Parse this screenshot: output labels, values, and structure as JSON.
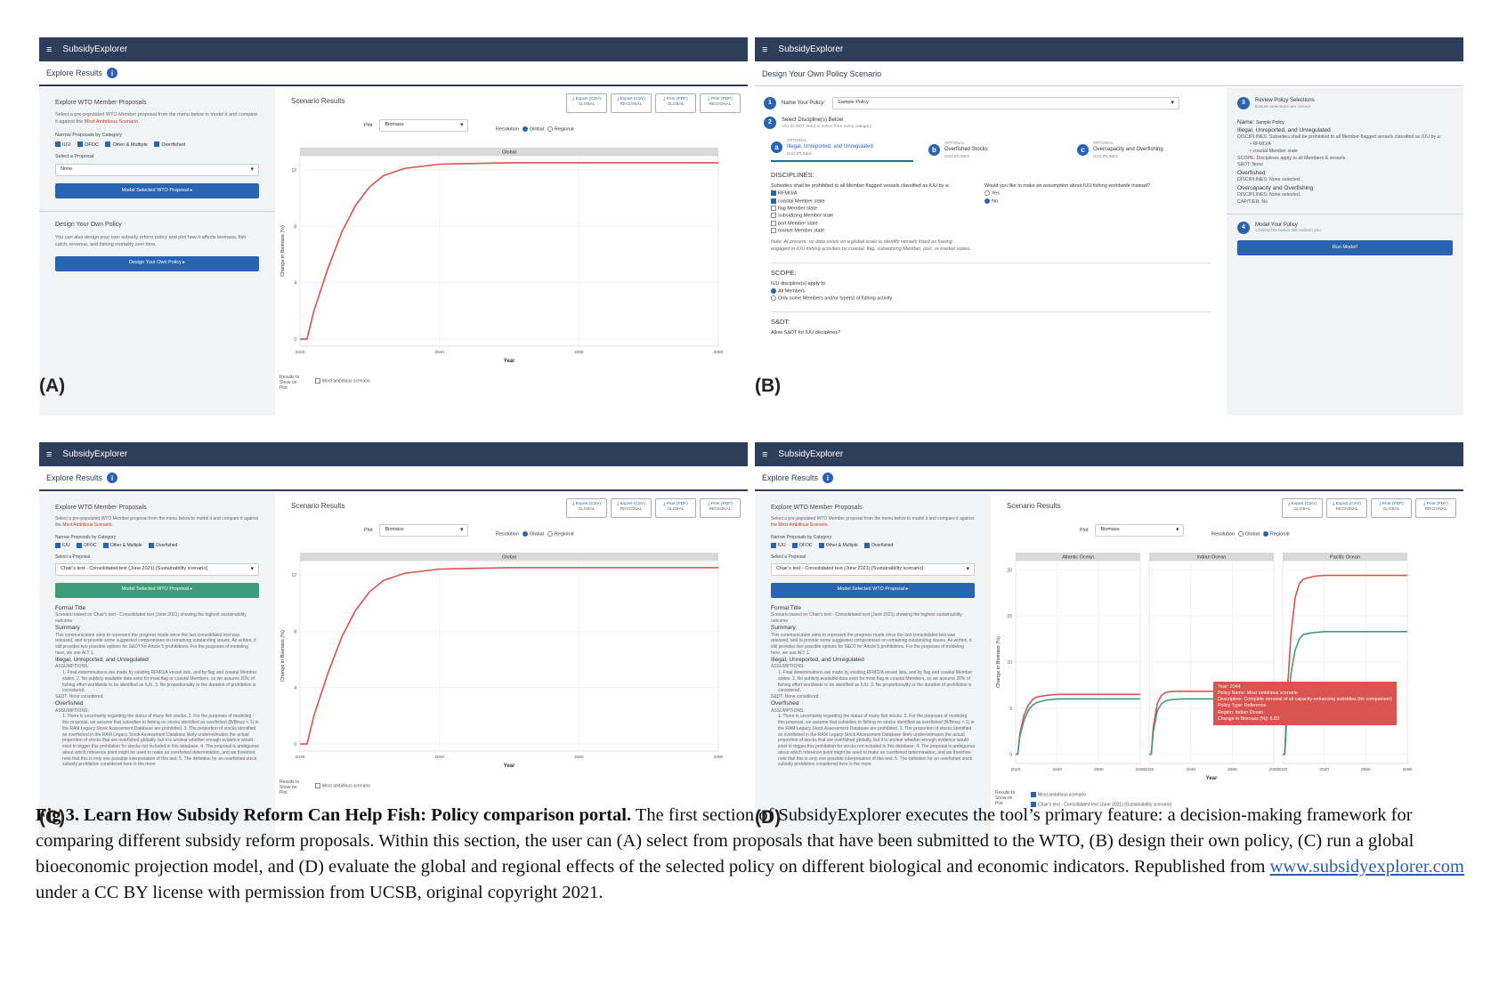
{
  "app_name": "SubsidyExplorer",
  "panel_labels": [
    "(A)",
    "(B)",
    "(C)",
    "(D)"
  ],
  "explore": {
    "subhead": "Explore Results",
    "wto_title": "Explore WTO Member Proposals",
    "wto_desc_1": "Select a pre-populated WTO Member proposal from the menu below to model it and compare it against the ",
    "wto_desc_red": "Most Ambitious Scenario.",
    "narrow_label": "Narrow Proposals by Category",
    "categories": [
      "IUU",
      "OFOC",
      "Other & Multiple",
      "Overfished"
    ],
    "select_label": "Select a Proposal",
    "proposal_none": "None",
    "proposal_chair": "Chair's text - Consolidated text (June 2021) [Sustainability scenario]",
    "model_button": "Model Selected WTO Proposal  ▸",
    "design_title": "Design Your Own Policy",
    "design_desc": "You can also design your own subsidy reform policy and plot how it affects biomass, fish catch, revenue, and fishing mortality over time.",
    "design_button": "Design Your Own Policy  ▸",
    "scenario_title": "Scenario Results",
    "exports": [
      {
        "label": "⤓ Export (CSV)",
        "sub": "GLOBAL"
      },
      {
        "label": "⤓ Export (CSV)",
        "sub": "REGIONAL"
      },
      {
        "label": "⤓ Print (PDF)",
        "sub": "GLOBAL"
      },
      {
        "label": "⤓ Print (PDF)",
        "sub": "REGIONAL"
      }
    ],
    "plot_label": "Plot",
    "plot_value": "Biomass",
    "resolution_label": "Resolution",
    "res_global": "Global",
    "res_regional": "Regional",
    "results_to_show": "Results to Show on Plot",
    "most_ambitious": "Most ambitious scenario",
    "chair_legend": "Chair's text - Consolidated text (June 2021) [Sustainability scenario]"
  },
  "details_c": {
    "formal_title": "Formal Title",
    "formal_text": "Scenario based on Chair's text - Consolidated text (June 2021) showing the highest sustainability outcome",
    "summary": "Summary",
    "summary_text": "This communication aims to represent the progress made since the last consolidated text was released, and to provide some suggested compromises on remaining outstanding issues. As written, it still provides two possible options for S&DT for Article 5 prohibitions. For the purposes of modeling here, we use ALT 1.",
    "iuu": "Illegal, Unreported, and Unregulated",
    "assumptions": "ASSUMPTIONS:",
    "iuu_items": "1. Final determinations are made by existing RFMO/A vessel lists, and by flag and coastal Member states. 2. No publicly available data exist for most flag or coastal Members, so we assume 20% of fishing effort worldwide to be identified as IUU. 3. No proportionality or the duration of prohibition is considered.",
    "sdt": "S&DT: None considered.",
    "overfished": "Overfished",
    "of_items": "1. There is uncertainty regarding the status of many fish stocks. 2. For the purposes of modeling this proposal, we assume that subsidies to fishing on stocks identified as overfished (B/Bmsy < 1) in the RAM Legacy Stock Assessment Database are prohibited. 3. The proportion of stocks identified as overfished in the RAM Legacy Stock Assessment Database likely underestimates the actual proportion of stocks that are overfished globally, but it is unclear whether enough evidence would exist to trigger this prohibition for stocks not included in this database. 4. The proposal is ambiguous about which reference point might be used to make an overfished determination, and we therefore note that this is only one possible interpretation of this text. 5. The definition for an overfished stock subsidy prohibition considered here is the more"
  },
  "design": {
    "subhead": "Design Your Own Policy Scenario",
    "step1": "Name Your Policy:",
    "policy_name": "Sample Policy",
    "step2": "Select Discipline(s) Below",
    "step2_sub": "You do NOT need to select from every category",
    "tabs": [
      {
        "letter": "a",
        "optional": "OPTIONAL",
        "name": "Illegal, Unreported, and Unregulated",
        "sub": "DISCIPLINES"
      },
      {
        "letter": "b",
        "optional": "OPTIONAL",
        "name": "Overfished Stocks",
        "sub": "DISCIPLINES"
      },
      {
        "letter": "c",
        "optional": "OPTIONAL",
        "name": "Overcapacity and Overfishing",
        "sub": "DISCIPLINES"
      }
    ],
    "disciplines_title": "DISCIPLINES:",
    "disc_prompt": "Subsidies shall be prohibited to all Member-flagged vessels classified as IUU by a:",
    "disc_options": [
      "RFMO/A",
      "coastal Member state",
      "flag Member state",
      "subsidizing Member state",
      "port Member state",
      "market Member state"
    ],
    "assume_q": "Would you like to make an assumption about IUU fishing worldwide instead?",
    "yes": "Yes",
    "no": "No",
    "note": "Note: At present, no data exists on a global scale to identify vessels listed as having engaged in IUU fishing activities by coastal, flag, subsidizing Member, port, or market states.",
    "scope_title": "SCOPE:",
    "scope_prompt": "IUU discipline(s) apply to:",
    "scope_opts": [
      "All Members",
      "Only some Members and/or type(s) of fishing activity"
    ],
    "sdt_title": "S&DT:",
    "sdt_prompt": "Allow S&DT for IUU disciplines?",
    "step3": "Review Policy Selections",
    "step3_sub": "Ensure selections are correct",
    "review_name": "Name:",
    "review_name_val": "Sample Policy",
    "review_iuu": "Illegal, Unreported, and Unregulated",
    "review_iuu_disc": "DISCIPLINES: Subsidies shall be prohibited to all Member-flagged vessels classified as IUU by a:",
    "review_iuu_b1": "RFMO/A",
    "review_iuu_b2": "coastal Member state",
    "review_scope": "SCOPE: Disciplines apply to all Members & vessels.",
    "review_sdt": "S&DT: None",
    "review_of": "Overfished",
    "review_none": "DISCIPLINES: None selected.",
    "review_oc": "Overcapacity and Overfishing",
    "review_cap": "CAP/TIER: No",
    "step4": "Model Your Policy",
    "step4_sub": "Clicking the button will redirect you",
    "run_button": "Run Model!"
  },
  "tooltip": {
    "year": "Year: 2044",
    "policy": "Policy Name: Most ambitious scenario",
    "desc": "Description: Complete removal of all capacity-enhancing subsidies (for comparison)",
    "type": "Policy Type: Reference",
    "region": "Region: Indian Ocean",
    "change": "Change in Biomass (%): 6.83"
  },
  "caption": {
    "bold": "Fig 3.  Learn How Subsidy Reform Can Help Fish: Policy comparison portal.",
    "text": " The first section of SubsidyExplorer executes the tool’s primary feature: a decision-making framework for comparing different subsidy reform proposals. Within this section, the user can (A) select from proposals that have been submitted to the WTO, (B) design their own policy, (C) run a global bioeconomic projection model, and (D) evaluate the global and regional effects of the selected policy on different biological and economic indicators. Republished from ",
    "link": "www.subsidyexplorer.com",
    "text2": " under a CC BY license with permission from UCSB, original copyright 2021."
  },
  "chart_data": [
    {
      "type": "line",
      "panel": "A",
      "facet": "Global",
      "xlabel": "Year",
      "ylabel": "Change in Biomass (%)",
      "xlim": [
        2020,
        2080
      ],
      "ylim": [
        -0.5,
        13
      ],
      "xticks": [
        2020,
        2040,
        2060,
        2080
      ],
      "yticks": [
        0,
        4,
        8,
        12
      ],
      "series": [
        {
          "name": "Most ambitious scenario",
          "color": "#d9534f",
          "x": [
            2020,
            2021,
            2022,
            2024,
            2026,
            2028,
            2030,
            2032,
            2035,
            2040,
            2050,
            2060,
            2070,
            2080
          ],
          "values": [
            0,
            0,
            2.0,
            5.0,
            7.6,
            9.5,
            10.8,
            11.6,
            12.1,
            12.4,
            12.5,
            12.5,
            12.5,
            12.5
          ]
        }
      ]
    },
    {
      "type": "line",
      "panel": "C",
      "facet": "Global",
      "xlabel": "Year",
      "ylabel": "Change in Biomass (%)",
      "xlim": [
        2020,
        2080
      ],
      "ylim": [
        -0.5,
        13
      ],
      "xticks": [
        2020,
        2040,
        2060,
        2080
      ],
      "yticks": [
        0,
        4,
        8,
        12
      ],
      "series": [
        {
          "name": "Most ambitious scenario",
          "color": "#d9534f",
          "x": [
            2020,
            2021,
            2022,
            2024,
            2026,
            2028,
            2030,
            2032,
            2035,
            2040,
            2050,
            2060,
            2070,
            2080
          ],
          "values": [
            0,
            0,
            2.0,
            5.0,
            7.6,
            9.5,
            10.8,
            11.6,
            12.1,
            12.4,
            12.5,
            12.5,
            12.5,
            12.5
          ]
        }
      ]
    },
    {
      "type": "line",
      "panel": "D",
      "facets": [
        "Atlantic Ocean",
        "Indian Ocean",
        "Pacific Ocean"
      ],
      "xlabel": "Year",
      "ylabel": "Change in Biomass (%)",
      "xlim": [
        2020,
        2080
      ],
      "ylim": [
        -1,
        21
      ],
      "xticks": [
        2020,
        2040,
        2060,
        2080
      ],
      "yticks": [
        0,
        5,
        10,
        15,
        20
      ],
      "x": [
        2020,
        2021,
        2022,
        2024,
        2026,
        2028,
        2030,
        2035,
        2040,
        2050,
        2060,
        2070,
        2080
      ],
      "series": [
        {
          "name": "Most ambitious scenario",
          "color": "#d9534f",
          "facet": "Atlantic Ocean",
          "values": [
            0,
            0,
            2.2,
            4.2,
            5.3,
            5.9,
            6.2,
            6.4,
            6.5,
            6.5,
            6.5,
            6.5,
            6.5
          ]
        },
        {
          "name": "Chair's text - Consolidated text (June 2021) [Sustainability scenario]",
          "color": "#3e9d78",
          "facet": "Atlantic Ocean",
          "values": [
            0,
            0,
            1.9,
            3.7,
            4.7,
            5.3,
            5.6,
            5.9,
            6.0,
            6.0,
            6.0,
            6.0,
            6.0
          ]
        },
        {
          "name": "Most ambitious scenario",
          "color": "#d9534f",
          "facet": "Indian Ocean",
          "values": [
            0,
            0,
            3.0,
            5.6,
            6.4,
            6.7,
            6.8,
            6.83,
            6.83,
            6.83,
            6.83,
            6.83,
            6.83
          ]
        },
        {
          "name": "Chair's text - Consolidated text (June 2021) [Sustainability scenario]",
          "color": "#3e9d78",
          "facet": "Indian Ocean",
          "values": [
            0,
            0,
            2.5,
            4.8,
            5.5,
            5.8,
            5.9,
            6.0,
            6.0,
            6.0,
            6.0,
            6.0,
            6.0
          ]
        },
        {
          "name": "Most ambitious scenario",
          "color": "#d9534f",
          "facet": "Pacific Ocean",
          "values": [
            0,
            0,
            6.0,
            13.0,
            17.0,
            18.5,
            19.0,
            19.3,
            19.4,
            19.4,
            19.4,
            19.4,
            19.4
          ]
        },
        {
          "name": "Chair's text - Consolidated text (June 2021) [Sustainability scenario]",
          "color": "#3e9d78",
          "facet": "Pacific Ocean",
          "values": [
            0,
            0,
            4.0,
            8.8,
            11.3,
            12.5,
            13.0,
            13.2,
            13.3,
            13.3,
            13.3,
            13.3,
            13.3
          ]
        }
      ]
    }
  ]
}
